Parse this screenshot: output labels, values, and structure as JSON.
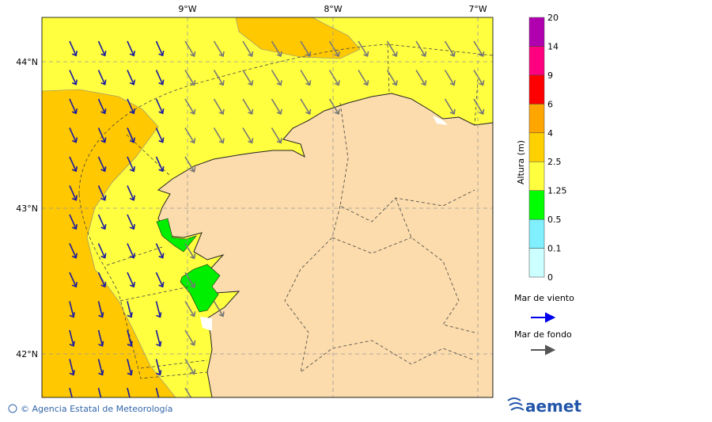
{
  "map": {
    "lon_labels": [
      "9°W",
      "8°W",
      "7°W"
    ],
    "lat_labels": [
      "44°N",
      "43°N",
      "42°N"
    ]
  },
  "legend": {
    "title": "Altura (m)",
    "ticks": [
      "0",
      "0.1",
      "0.5",
      "1.25",
      "2.5",
      "4",
      "6",
      "9",
      "14",
      "20"
    ],
    "colors": [
      "#ccffff",
      "#80f0ff",
      "#00ff00",
      "#ffff40",
      "#ffd000",
      "#ffa500",
      "#ff0000",
      "#ff0080",
      "#b000b0"
    ],
    "wind_sea": "Mar de viento",
    "swell": "Mar de fondo"
  },
  "footer": {
    "copyright": "© Agencia Estatal de Meteorología",
    "logo": "aemet"
  }
}
